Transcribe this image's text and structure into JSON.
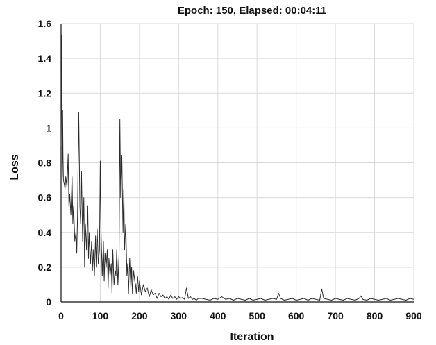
{
  "chart_data": {
    "type": "line",
    "title": "Epoch: 150, Elapsed: 00:04:11",
    "xlabel": "Iteration",
    "ylabel": "Loss",
    "xlim": [
      0,
      900
    ],
    "ylim": [
      0,
      1.6
    ],
    "grid": true,
    "legend": "none",
    "x_ticks": [
      "0",
      "100",
      "200",
      "300",
      "400",
      "500",
      "600",
      "700",
      "800",
      "900"
    ],
    "y_ticks": [
      "0",
      "0.2",
      "0.4",
      "0.6",
      "0.8",
      "1",
      "1.2",
      "1.4",
      "1.6"
    ],
    "series": [
      {
        "name": "",
        "x": [
          0,
          1,
          2,
          3,
          4,
          5,
          6,
          8,
          10,
          12,
          15,
          18,
          20,
          22,
          25,
          28,
          30,
          32,
          35,
          38,
          40,
          42,
          45,
          48,
          50,
          52,
          55,
          58,
          60,
          62,
          65,
          68,
          70,
          72,
          75,
          78,
          80,
          82,
          85,
          88,
          90,
          92,
          95,
          98,
          100,
          102,
          105,
          108,
          110,
          112,
          115,
          118,
          120,
          122,
          125,
          128,
          130,
          132,
          135,
          138,
          140,
          142,
          145,
          148,
          150,
          152,
          155,
          158,
          160,
          162,
          165,
          168,
          170,
          172,
          175,
          178,
          180,
          182,
          185,
          188,
          190,
          192,
          195,
          198,
          200,
          205,
          210,
          215,
          220,
          225,
          230,
          235,
          240,
          245,
          250,
          255,
          260,
          265,
          270,
          275,
          280,
          285,
          290,
          295,
          300,
          305,
          310,
          315,
          320,
          325,
          330,
          335,
          340,
          345,
          350,
          360,
          370,
          380,
          390,
          400,
          410,
          420,
          430,
          440,
          450,
          460,
          470,
          480,
          490,
          500,
          510,
          520,
          530,
          540,
          550,
          555,
          560,
          570,
          580,
          590,
          600,
          610,
          620,
          630,
          640,
          650,
          660,
          665,
          670,
          680,
          690,
          700,
          710,
          720,
          730,
          740,
          750,
          760,
          765,
          770,
          780,
          790,
          800,
          810,
          820,
          830,
          840,
          850,
          860,
          870,
          880,
          890,
          900
        ],
        "values": [
          0.9,
          1.53,
          1.12,
          0.72,
          1.1,
          0.83,
          0.7,
          0.68,
          0.65,
          0.72,
          0.66,
          0.85,
          0.55,
          0.62,
          0.5,
          0.72,
          0.45,
          0.55,
          0.35,
          0.4,
          0.28,
          0.5,
          1.09,
          0.55,
          0.45,
          0.75,
          0.35,
          0.6,
          0.2,
          0.45,
          0.3,
          0.55,
          0.25,
          0.4,
          0.22,
          0.35,
          0.18,
          0.3,
          0.15,
          0.38,
          0.2,
          0.42,
          0.22,
          0.3,
          0.81,
          0.4,
          0.15,
          0.35,
          0.12,
          0.28,
          0.2,
          0.3,
          0.08,
          0.25,
          0.15,
          0.22,
          0.05,
          0.3,
          0.1,
          0.18,
          0.15,
          0.3,
          0.1,
          0.28,
          1.05,
          0.6,
          0.84,
          0.4,
          0.65,
          0.3,
          0.45,
          0.15,
          0.22,
          0.05,
          0.25,
          0.08,
          0.2,
          0.05,
          0.18,
          0.12,
          0.1,
          0.05,
          0.15,
          0.06,
          0.12,
          0.04,
          0.1,
          0.06,
          0.08,
          0.03,
          0.07,
          0.04,
          0.05,
          0.02,
          0.05,
          0.03,
          0.04,
          0.02,
          0.03,
          0.015,
          0.04,
          0.02,
          0.03,
          0.015,
          0.03,
          0.02,
          0.025,
          0.015,
          0.08,
          0.02,
          0.03,
          0.015,
          0.02,
          0.01,
          0.02,
          0.02,
          0.015,
          0.01,
          0.02,
          0.015,
          0.03,
          0.015,
          0.02,
          0.01,
          0.02,
          0.015,
          0.01,
          0.02,
          0.01,
          0.015,
          0.02,
          0.01,
          0.015,
          0.02,
          0.015,
          0.05,
          0.02,
          0.01,
          0.015,
          0.02,
          0.01,
          0.015,
          0.02,
          0.01,
          0.02,
          0.015,
          0.01,
          0.075,
          0.02,
          0.015,
          0.01,
          0.02,
          0.015,
          0.01,
          0.02,
          0.015,
          0.01,
          0.02,
          0.035,
          0.015,
          0.01,
          0.02,
          0.015,
          0.01,
          0.015,
          0.02,
          0.01,
          0.015,
          0.02,
          0.015,
          0.01,
          0.02,
          0.015
        ]
      }
    ]
  }
}
